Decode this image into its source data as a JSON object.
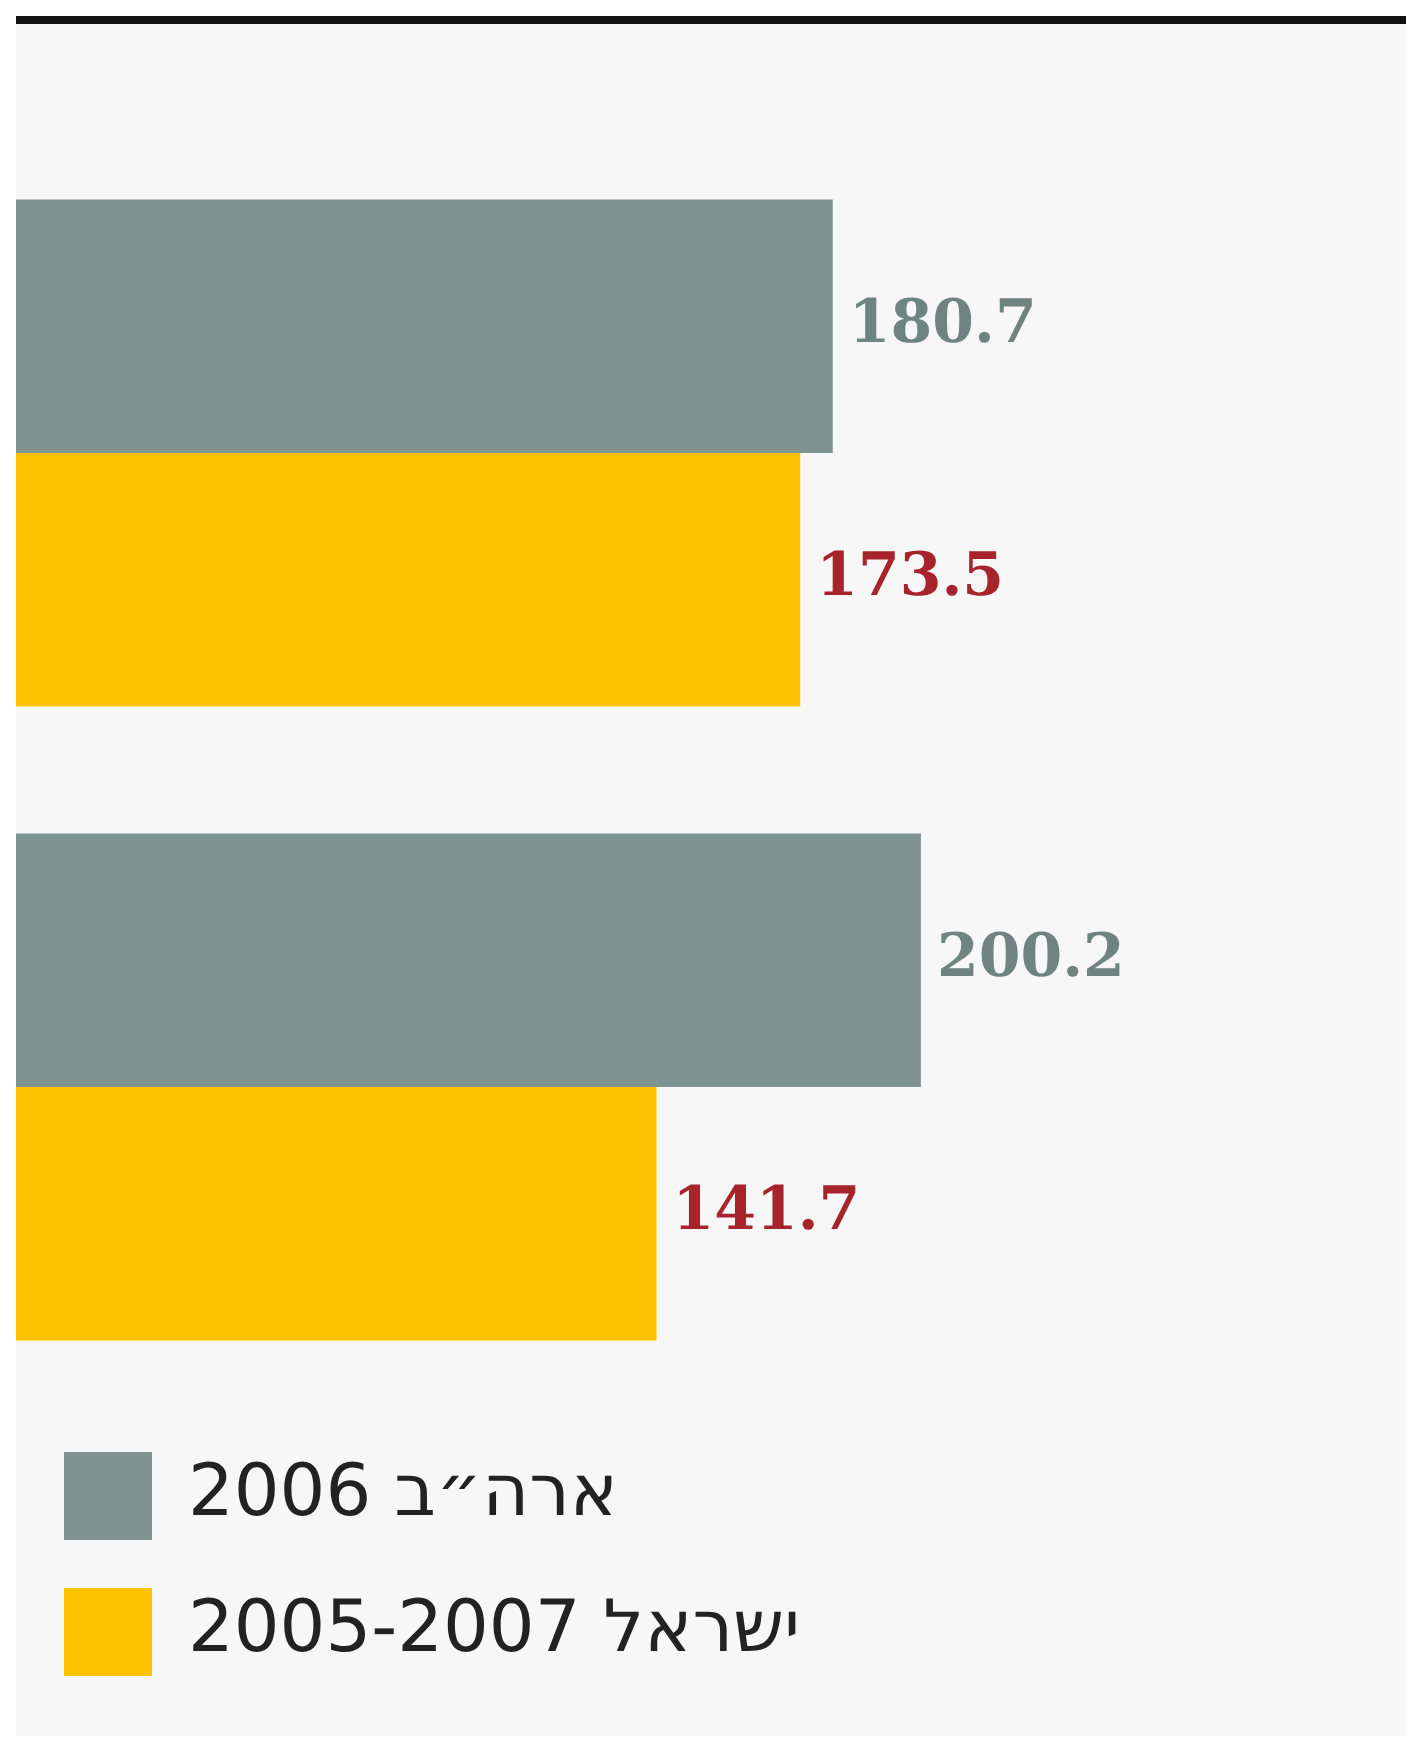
{
  "chart_data": {
    "type": "bar",
    "orientation": "horizontal",
    "categories": [
      null,
      null
    ],
    "series": [
      {
        "name": "ארה״ב 2006",
        "color": "#7f9490",
        "values": [
          180.7,
          200.2
        ]
      },
      {
        "name": "ישראל 2005-2007",
        "color": "#fdc300",
        "values": [
          173.5,
          141.7
        ]
      }
    ],
    "tick_labels": false,
    "data_labels": true,
    "legend": "bottom left"
  }
}
